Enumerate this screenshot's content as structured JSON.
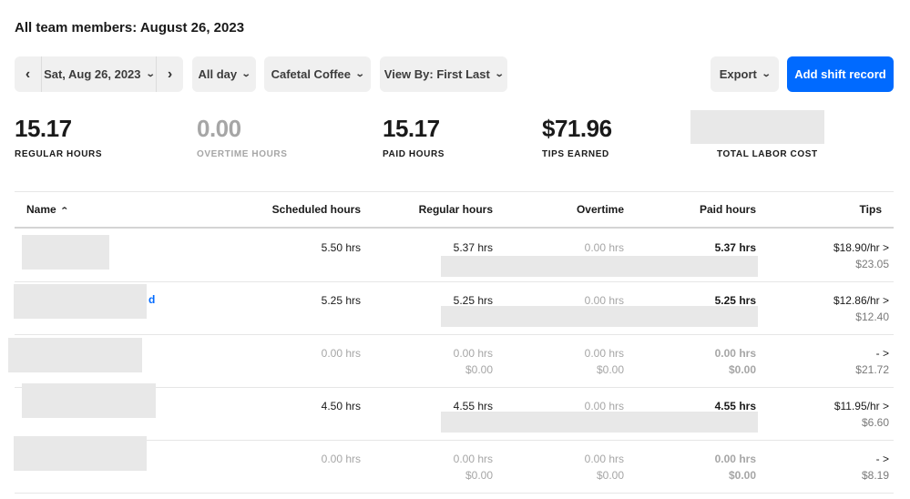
{
  "page": {
    "title": "All team members: August 26, 2023"
  },
  "toolbar": {
    "prev_icon": "chevron-left-icon",
    "date_label": "Sat, Aug 26, 2023",
    "next_icon": "chevron-right-icon",
    "time_range_label": "All day",
    "location_label": "Cafetal Coffee",
    "view_by_label": "View By: First Last",
    "export_label": "Export",
    "add_shift_label": "Add shift record",
    "accent_color": "#006aff"
  },
  "stats": [
    {
      "value": "15.17",
      "label": "REGULAR HOURS"
    },
    {
      "value": "0.00",
      "label": "OVERTIME HOURS"
    },
    {
      "value": "15.17",
      "label": "PAID HOURS"
    },
    {
      "value": "$71.96",
      "label": "TIPS EARNED"
    },
    {
      "value": "",
      "label": "TOTAL LABOR COST"
    }
  ],
  "table": {
    "columns": [
      "Name",
      "Scheduled hours",
      "Regular hours",
      "Overtime",
      "Paid hours",
      "Tips"
    ],
    "rows": [
      {
        "name_fragment": "",
        "scheduled": "5.50 hrs",
        "regular": "5.37 hrs",
        "regular_sub": "",
        "overtime": "0.00 hrs",
        "overtime_sub": "",
        "paid": "5.37 hrs",
        "paid_sub": "",
        "tips_rate": "$18.90/hr >",
        "tips_total": "$23.05"
      },
      {
        "name_fragment": "d",
        "scheduled": "5.25 hrs",
        "regular": "5.25 hrs",
        "regular_sub": "",
        "overtime": "0.00 hrs",
        "overtime_sub": "",
        "paid": "5.25 hrs",
        "paid_sub": "",
        "tips_rate": "$12.86/hr >",
        "tips_total": "$12.40"
      },
      {
        "name_fragment": "",
        "scheduled": "0.00 hrs",
        "regular": "0.00 hrs",
        "regular_sub": "$0.00",
        "overtime": "0.00 hrs",
        "overtime_sub": "$0.00",
        "paid": "0.00 hrs",
        "paid_sub": "$0.00",
        "tips_rate": "- >",
        "tips_total": "$21.72"
      },
      {
        "name_fragment": "",
        "scheduled": "4.50 hrs",
        "regular": "4.55 hrs",
        "regular_sub": "",
        "overtime": "0.00 hrs",
        "overtime_sub": "",
        "paid": "4.55 hrs",
        "paid_sub": "",
        "tips_rate": "$11.95/hr >",
        "tips_total": "$6.60"
      },
      {
        "name_fragment": "",
        "scheduled": "0.00 hrs",
        "regular": "0.00 hrs",
        "regular_sub": "$0.00",
        "overtime": "0.00 hrs",
        "overtime_sub": "$0.00",
        "paid": "0.00 hrs",
        "paid_sub": "$0.00",
        "tips_rate": "- >",
        "tips_total": "$8.19"
      }
    ]
  }
}
